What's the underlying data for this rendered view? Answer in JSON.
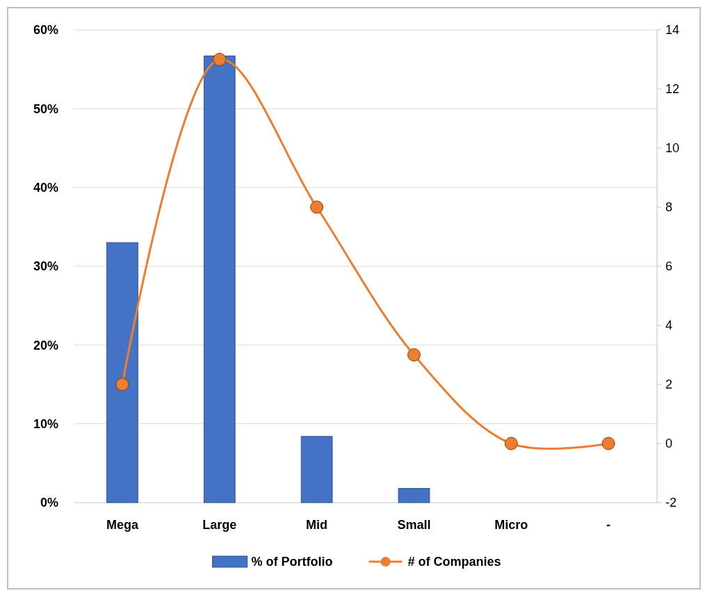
{
  "chart_data": {
    "type": "bar",
    "categories": [
      "Mega",
      "Large",
      "Mid",
      "Small",
      "Micro",
      "-"
    ],
    "series": [
      {
        "name": "% of Portfolio",
        "color": "#4472c4",
        "values": [
          33,
          56.7,
          8.4,
          1.8,
          0,
          0
        ]
      },
      {
        "name": "# of Companies",
        "type": "line",
        "axis": "y2",
        "color": "#ed7d31",
        "marker": "circle",
        "values": [
          2,
          13,
          8,
          3,
          0,
          0
        ]
      }
    ],
    "ylim": [
      0,
      60
    ],
    "yticks": [
      {
        "value": 0,
        "label": "0%"
      },
      {
        "value": 10,
        "label": "10%"
      },
      {
        "value": 20,
        "label": "20%"
      },
      {
        "value": 30,
        "label": "30%"
      },
      {
        "value": 40,
        "label": "40%"
      },
      {
        "value": 50,
        "label": "50%"
      },
      {
        "value": 60,
        "label": "60%"
      }
    ],
    "y2lim": [
      -2,
      14
    ],
    "y2ticks": [
      -2,
      0,
      2,
      4,
      6,
      8,
      10,
      12,
      14
    ],
    "grid": "y",
    "legend": "bottom"
  }
}
